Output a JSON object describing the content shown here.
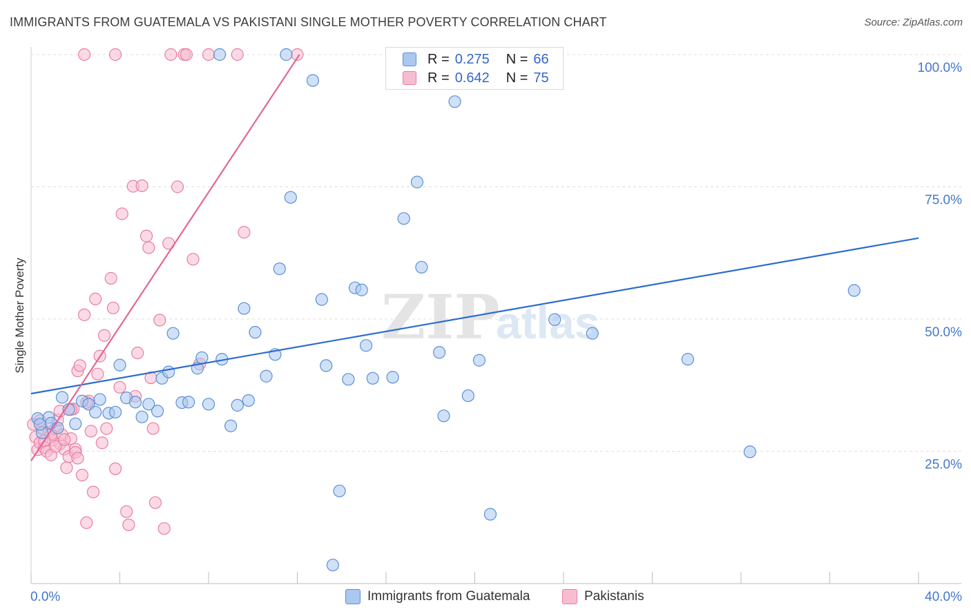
{
  "title": "IMMIGRANTS FROM GUATEMALA VS PAKISTANI SINGLE MOTHER POVERTY CORRELATION CHART",
  "source": "Source: ZipAtlas.com",
  "legend": {
    "r_label": "R =",
    "n_label": "N =",
    "rows": [
      {
        "r": "0.275",
        "n": "66"
      },
      {
        "r": "0.642",
        "n": "75"
      }
    ]
  },
  "bottom_legend": [
    "Immigrants from Guatemala",
    "Pakistanis"
  ],
  "colors": {
    "blue_fill": "#aac8f0",
    "blue_stroke": "#5b8fd6",
    "blue_line": "#2a6bd0",
    "pink_fill": "#f7bcd0",
    "pink_stroke": "#e87ea1",
    "pink_line": "#e36595",
    "axis_text": "#4477cc"
  },
  "chart_data": {
    "type": "scatter",
    "title": "IMMIGRANTS FROM GUATEMALA VS PAKISTANI SINGLE MOTHER POVERTY CORRELATION CHART",
    "xlabel": "",
    "ylabel": "Single Mother Poverty",
    "xlim": [
      0,
      40
    ],
    "ylim": [
      0,
      100
    ],
    "x_tick_labels": [
      "0.0%",
      "40.0%"
    ],
    "y_tick_labels": [
      "100.0%",
      "75.0%",
      "50.0%",
      "25.0%"
    ],
    "y_ticks": [
      100,
      75,
      50,
      25
    ],
    "watermark": [
      "ZIP",
      "atlas"
    ],
    "series": [
      {
        "name": "Immigrants from Guatemala",
        "r": 0.275,
        "n": 66,
        "trend": {
          "x": [
            0,
            40
          ],
          "y": [
            35.9,
            65.3
          ]
        },
        "points": [
          [
            0.3,
            31.2
          ],
          [
            0.5,
            28.5
          ],
          [
            0.8,
            31.4
          ],
          [
            0.9,
            30.3
          ],
          [
            1.4,
            35.2
          ],
          [
            1.7,
            32.9
          ],
          [
            2.0,
            30.2
          ],
          [
            2.3,
            34.5
          ],
          [
            2.6,
            33.9
          ],
          [
            2.9,
            32.4
          ],
          [
            3.1,
            34.8
          ],
          [
            3.5,
            32.2
          ],
          [
            3.8,
            32.4
          ],
          [
            4.0,
            41.3
          ],
          [
            4.3,
            35.1
          ],
          [
            4.7,
            34.3
          ],
          [
            5.0,
            31.5
          ],
          [
            5.3,
            33.9
          ],
          [
            5.7,
            32.6
          ],
          [
            5.9,
            38.8
          ],
          [
            6.2,
            40.0
          ],
          [
            6.4,
            47.3
          ],
          [
            6.8,
            34.2
          ],
          [
            7.1,
            34.3
          ],
          [
            7.5,
            40.7
          ],
          [
            7.7,
            42.7
          ],
          [
            8.0,
            33.9
          ],
          [
            8.5,
            100.0
          ],
          [
            8.6,
            42.4
          ],
          [
            9.0,
            29.8
          ],
          [
            9.3,
            33.7
          ],
          [
            9.6,
            52.0
          ],
          [
            9.8,
            34.6
          ],
          [
            10.1,
            47.5
          ],
          [
            10.6,
            39.2
          ],
          [
            11.0,
            43.3
          ],
          [
            11.2,
            59.5
          ],
          [
            11.5,
            100.0
          ],
          [
            11.7,
            73.0
          ],
          [
            12.7,
            95.1
          ],
          [
            13.1,
            53.7
          ],
          [
            13.3,
            41.2
          ],
          [
            13.6,
            3.5
          ],
          [
            13.9,
            17.5
          ],
          [
            14.3,
            38.6
          ],
          [
            14.6,
            55.9
          ],
          [
            14.9,
            55.5
          ],
          [
            15.1,
            45.0
          ],
          [
            15.4,
            38.8
          ],
          [
            16.3,
            39.0
          ],
          [
            16.8,
            69.0
          ],
          [
            17.4,
            75.9
          ],
          [
            17.6,
            59.8
          ],
          [
            18.4,
            43.7
          ],
          [
            18.6,
            31.7
          ],
          [
            19.1,
            91.1
          ],
          [
            19.7,
            35.5
          ],
          [
            20.2,
            42.2
          ],
          [
            20.7,
            13.1
          ],
          [
            23.6,
            49.9
          ],
          [
            25.3,
            47.3
          ],
          [
            29.6,
            42.4
          ],
          [
            32.4,
            24.9
          ],
          [
            37.1,
            55.4
          ],
          [
            0.4,
            30.1
          ],
          [
            1.2,
            29.4
          ]
        ]
      },
      {
        "name": "Pakistanis",
        "r": 0.642,
        "n": 75,
        "trend": {
          "x": [
            0,
            12.1
          ],
          "y": [
            23.2,
            100.0
          ]
        },
        "points": [
          [
            0.1,
            30.1
          ],
          [
            0.2,
            27.7
          ],
          [
            0.3,
            25.3
          ],
          [
            0.4,
            26.6
          ],
          [
            0.5,
            29.3
          ],
          [
            0.6,
            25.7
          ],
          [
            0.7,
            25.0
          ],
          [
            0.8,
            28.6
          ],
          [
            0.9,
            24.3
          ],
          [
            1.0,
            27.1
          ],
          [
            1.1,
            29.3
          ],
          [
            1.2,
            30.9
          ],
          [
            1.3,
            26.4
          ],
          [
            1.4,
            28.1
          ],
          [
            1.5,
            25.4
          ],
          [
            1.6,
            21.9
          ],
          [
            1.7,
            24.0
          ],
          [
            1.8,
            27.4
          ],
          [
            1.9,
            33.0
          ],
          [
            2.0,
            25.4
          ],
          [
            2.1,
            40.2
          ],
          [
            2.2,
            41.2
          ],
          [
            2.3,
            20.5
          ],
          [
            2.4,
            50.8
          ],
          [
            2.5,
            11.5
          ],
          [
            2.6,
            34.5
          ],
          [
            2.7,
            28.8
          ],
          [
            2.8,
            17.3
          ],
          [
            2.9,
            53.8
          ],
          [
            3.0,
            39.6
          ],
          [
            3.1,
            43.0
          ],
          [
            3.2,
            26.6
          ],
          [
            3.3,
            46.9
          ],
          [
            3.4,
            29.3
          ],
          [
            3.6,
            57.7
          ],
          [
            3.7,
            52.1
          ],
          [
            3.8,
            21.7
          ],
          [
            4.0,
            37.1
          ],
          [
            4.1,
            69.9
          ],
          [
            4.3,
            13.6
          ],
          [
            4.4,
            11.1
          ],
          [
            4.6,
            75.1
          ],
          [
            4.7,
            35.4
          ],
          [
            4.8,
            43.6
          ],
          [
            5.0,
            75.2
          ],
          [
            5.2,
            65.7
          ],
          [
            5.3,
            63.5
          ],
          [
            5.4,
            38.9
          ],
          [
            5.5,
            29.3
          ],
          [
            5.6,
            15.3
          ],
          [
            5.8,
            49.8
          ],
          [
            6.0,
            10.4
          ],
          [
            6.2,
            64.3
          ],
          [
            6.3,
            100.0
          ],
          [
            6.6,
            75.0
          ],
          [
            6.9,
            100.0
          ],
          [
            7.0,
            100.0
          ],
          [
            7.3,
            61.3
          ],
          [
            7.6,
            41.5
          ],
          [
            8.0,
            100.0
          ],
          [
            9.3,
            100.0
          ],
          [
            9.6,
            66.4
          ],
          [
            12.0,
            100.0
          ],
          [
            2.4,
            100.0
          ],
          [
            3.8,
            100.0
          ],
          [
            1.8,
            32.9
          ],
          [
            1.5,
            27.2
          ],
          [
            0.9,
            28.2
          ],
          [
            2.0,
            24.8
          ],
          [
            1.1,
            25.9
          ],
          [
            0.4,
            30.8
          ],
          [
            0.6,
            27.0
          ],
          [
            2.1,
            23.7
          ],
          [
            1.3,
            32.6
          ],
          [
            2.5,
            34.2
          ]
        ]
      }
    ]
  }
}
